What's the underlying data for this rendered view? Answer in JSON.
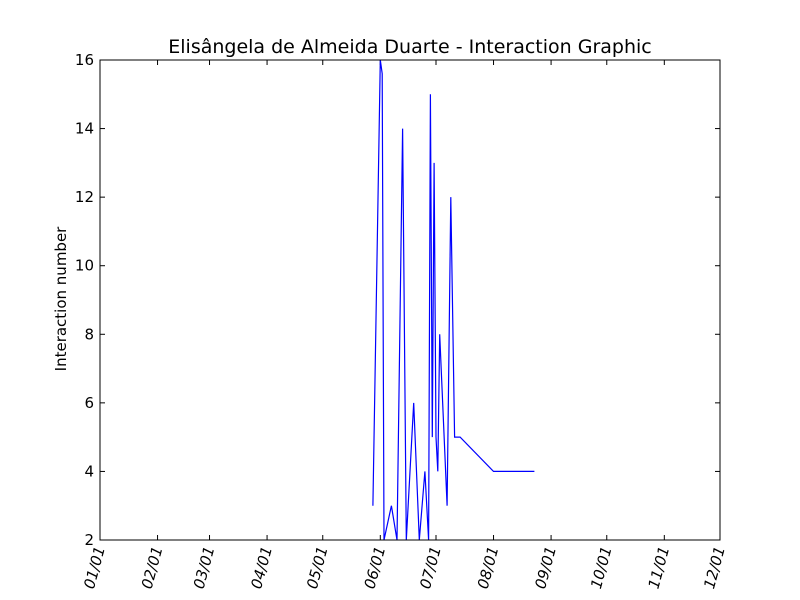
{
  "chart_data": {
    "type": "line",
    "title": "Elisângela de Almeida Duarte - Interaction Graphic",
    "xlabel": "",
    "ylabel": "Interaction number",
    "x_tick_labels": [
      "01/01",
      "02/01",
      "03/01",
      "04/01",
      "05/01",
      "06/01",
      "07/01",
      "08/01",
      "09/01",
      "10/01",
      "11/01",
      "12/01"
    ],
    "y_tick_labels": [
      "2",
      "4",
      "6",
      "8",
      "10",
      "12",
      "14",
      "16"
    ],
    "xlim": [
      "01/01",
      "12/01"
    ],
    "ylim": [
      2,
      16
    ],
    "grid": false,
    "legend": "none",
    "series": [
      {
        "color": "#0000ff",
        "x": [
          "05/28",
          "06/01",
          "06/02",
          "06/03",
          "06/07",
          "06/10",
          "06/13",
          "06/15",
          "06/19",
          "06/22",
          "06/25",
          "06/27",
          "06/28",
          "06/29",
          "06/30",
          "07/01",
          "07/02",
          "07/03",
          "07/07",
          "07/09",
          "07/11",
          "07/13",
          "07/14",
          "08/01",
          "08/23"
        ],
        "y": [
          3,
          16,
          15.6,
          2,
          3,
          2,
          14,
          2,
          6,
          2,
          4,
          2,
          15,
          5,
          13,
          5,
          4,
          8,
          3,
          12,
          5,
          5,
          5,
          4,
          4
        ]
      }
    ]
  }
}
